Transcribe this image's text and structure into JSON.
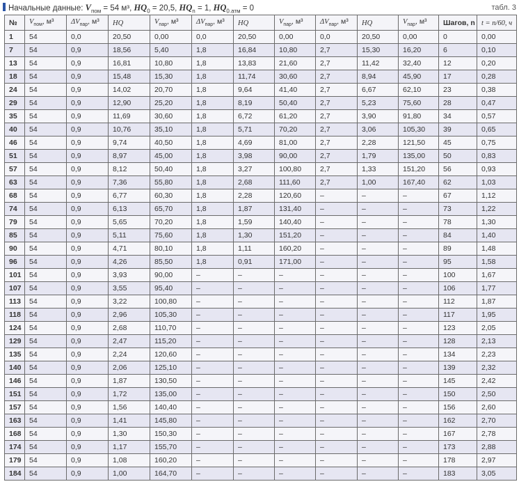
{
  "caption": {
    "prefix": "Начальные данные: ",
    "v_sym": "V",
    "v_sub": "пом",
    "v_val": " = 54 м³, ",
    "hq0_sym": "HQ",
    "hq0_sub": "0",
    "hq0_val": " = 20,5, ",
    "hqn_sym": "HQ",
    "hqn_sub": "n",
    "hqn_val": " = 1, ",
    "hqatm_sym": "HQ",
    "hqatm_sub": "0.атм",
    "hqatm_val": " = 0"
  },
  "table_label": "табл. 3",
  "columns": [
    {
      "sym": "№",
      "sub": "",
      "unit": ""
    },
    {
      "sym": "V",
      "sub": "пом",
      "unit": ", м³"
    },
    {
      "sym": "ΔV",
      "sub": "пар",
      "unit": ", м³"
    },
    {
      "sym": "HQ",
      "sub": "",
      "unit": ""
    },
    {
      "sym": "V",
      "sub": "пар",
      "unit": ", м³"
    },
    {
      "sym": "ΔV",
      "sub": "пар",
      "unit": ", м³"
    },
    {
      "sym": "HQ",
      "sub": "",
      "unit": ""
    },
    {
      "sym": "V",
      "sub": "пар",
      "unit": ", м³"
    },
    {
      "sym": "ΔV",
      "sub": "пар",
      "unit": ", м³"
    },
    {
      "sym": "HQ",
      "sub": "",
      "unit": ""
    },
    {
      "sym": "V",
      "sub": "пар",
      "unit": ", м³"
    },
    {
      "sym": "Шагов, n",
      "sub": "",
      "unit": ""
    },
    {
      "sym": "t = n/60, ч",
      "sub": "",
      "unit": ""
    }
  ],
  "rows": [
    [
      "1",
      "54",
      "0,0",
      "20,50",
      "0,00",
      "0,0",
      "20,50",
      "0,00",
      "0,0",
      "20,50",
      "0,00",
      "0",
      "0,00"
    ],
    [
      "7",
      "54",
      "0,9",
      "18,56",
      "5,40",
      "1,8",
      "16,84",
      "10,80",
      "2,7",
      "15,30",
      "16,20",
      "6",
      "0,10"
    ],
    [
      "13",
      "54",
      "0,9",
      "16,81",
      "10,80",
      "1,8",
      "13,83",
      "21,60",
      "2,7",
      "11,42",
      "32,40",
      "12",
      "0,20"
    ],
    [
      "18",
      "54",
      "0,9",
      "15,48",
      "15,30",
      "1,8",
      "11,74",
      "30,60",
      "2,7",
      "8,94",
      "45,90",
      "17",
      "0,28"
    ],
    [
      "24",
      "54",
      "0,9",
      "14,02",
      "20,70",
      "1,8",
      "9,64",
      "41,40",
      "2,7",
      "6,67",
      "62,10",
      "23",
      "0,38"
    ],
    [
      "29",
      "54",
      "0,9",
      "12,90",
      "25,20",
      "1,8",
      "8,19",
      "50,40",
      "2,7",
      "5,23",
      "75,60",
      "28",
      "0,47"
    ],
    [
      "35",
      "54",
      "0,9",
      "11,69",
      "30,60",
      "1,8",
      "6,72",
      "61,20",
      "2,7",
      "3,90",
      "91,80",
      "34",
      "0,57"
    ],
    [
      "40",
      "54",
      "0,9",
      "10,76",
      "35,10",
      "1,8",
      "5,71",
      "70,20",
      "2,7",
      "3,06",
      "105,30",
      "39",
      "0,65"
    ],
    [
      "46",
      "54",
      "0,9",
      "9,74",
      "40,50",
      "1,8",
      "4,69",
      "81,00",
      "2,7",
      "2,28",
      "121,50",
      "45",
      "0,75"
    ],
    [
      "51",
      "54",
      "0,9",
      "8,97",
      "45,00",
      "1,8",
      "3,98",
      "90,00",
      "2,7",
      "1,79",
      "135,00",
      "50",
      "0,83"
    ],
    [
      "57",
      "54",
      "0,9",
      "8,12",
      "50,40",
      "1,8",
      "3,27",
      "100,80",
      "2,7",
      "1,33",
      "151,20",
      "56",
      "0,93"
    ],
    [
      "63",
      "54",
      "0,9",
      "7,36",
      "55,80",
      "1,8",
      "2,68",
      "111,60",
      "2,7",
      "1,00",
      "167,40",
      "62",
      "1,03"
    ],
    [
      "68",
      "54",
      "0,9",
      "6,77",
      "60,30",
      "1,8",
      "2,28",
      "120,60",
      "–",
      "–",
      "–",
      "67",
      "1,12"
    ],
    [
      "74",
      "54",
      "0,9",
      "6,13",
      "65,70",
      "1,8",
      "1,87",
      "131,40",
      "–",
      "–",
      "–",
      "73",
      "1,22"
    ],
    [
      "79",
      "54",
      "0,9",
      "5,65",
      "70,20",
      "1,8",
      "1,59",
      "140,40",
      "–",
      "–",
      "–",
      "78",
      "1,30"
    ],
    [
      "85",
      "54",
      "0,9",
      "5,11",
      "75,60",
      "1,8",
      "1,30",
      "151,20",
      "–",
      "–",
      "–",
      "84",
      "1,40"
    ],
    [
      "90",
      "54",
      "0,9",
      "4,71",
      "80,10",
      "1,8",
      "1,11",
      "160,20",
      "–",
      "–",
      "–",
      "89",
      "1,48"
    ],
    [
      "96",
      "54",
      "0,9",
      "4,26",
      "85,50",
      "1,8",
      "0,91",
      "171,00",
      "–",
      "–",
      "–",
      "95",
      "1,58"
    ],
    [
      "101",
      "54",
      "0,9",
      "3,93",
      "90,00",
      "–",
      "–",
      "–",
      "–",
      "–",
      "–",
      "100",
      "1,67"
    ],
    [
      "107",
      "54",
      "0,9",
      "3,55",
      "95,40",
      "–",
      "–",
      "–",
      "–",
      "–",
      "–",
      "106",
      "1,77"
    ],
    [
      "113",
      "54",
      "0,9",
      "3,22",
      "100,80",
      "–",
      "–",
      "–",
      "–",
      "–",
      "–",
      "112",
      "1,87"
    ],
    [
      "118",
      "54",
      "0,9",
      "2,96",
      "105,30",
      "–",
      "–",
      "–",
      "–",
      "–",
      "–",
      "117",
      "1,95"
    ],
    [
      "124",
      "54",
      "0,9",
      "2,68",
      "110,70",
      "–",
      "–",
      "–",
      "–",
      "–",
      "–",
      "123",
      "2,05"
    ],
    [
      "129",
      "54",
      "0,9",
      "2,47",
      "115,20",
      "–",
      "–",
      "–",
      "–",
      "–",
      "–",
      "128",
      "2,13"
    ],
    [
      "135",
      "54",
      "0,9",
      "2,24",
      "120,60",
      "–",
      "–",
      "–",
      "–",
      "–",
      "–",
      "134",
      "2,23"
    ],
    [
      "140",
      "54",
      "0,9",
      "2,06",
      "125,10",
      "–",
      "–",
      "–",
      "–",
      "–",
      "–",
      "139",
      "2,32"
    ],
    [
      "146",
      "54",
      "0,9",
      "1,87",
      "130,50",
      "–",
      "–",
      "–",
      "–",
      "–",
      "–",
      "145",
      "2,42"
    ],
    [
      "151",
      "54",
      "0,9",
      "1,72",
      "135,00",
      "–",
      "–",
      "–",
      "–",
      "–",
      "–",
      "150",
      "2,50"
    ],
    [
      "157",
      "54",
      "0,9",
      "1,56",
      "140,40",
      "–",
      "–",
      "–",
      "–",
      "–",
      "–",
      "156",
      "2,60"
    ],
    [
      "163",
      "54",
      "0,9",
      "1,41",
      "145,80",
      "–",
      "–",
      "–",
      "–",
      "–",
      "–",
      "162",
      "2,70"
    ],
    [
      "168",
      "54",
      "0,9",
      "1,30",
      "150,30",
      "–",
      "–",
      "–",
      "–",
      "–",
      "–",
      "167",
      "2,78"
    ],
    [
      "174",
      "54",
      "0,9",
      "1,17",
      "155,70",
      "–",
      "–",
      "–",
      "–",
      "–",
      "–",
      "173",
      "2,88"
    ],
    [
      "179",
      "54",
      "0,9",
      "1,08",
      "160,20",
      "–",
      "–",
      "–",
      "–",
      "–",
      "–",
      "178",
      "2,97"
    ],
    [
      "184",
      "54",
      "0,9",
      "1,00",
      "164,70",
      "–",
      "–",
      "–",
      "–",
      "–",
      "–",
      "183",
      "3,05"
    ]
  ],
  "colors": {
    "marker": "#2b55a6",
    "row_light": "#f5f5f9",
    "row_shaded": "#e6e6f2",
    "border": "#6a6a6a"
  }
}
